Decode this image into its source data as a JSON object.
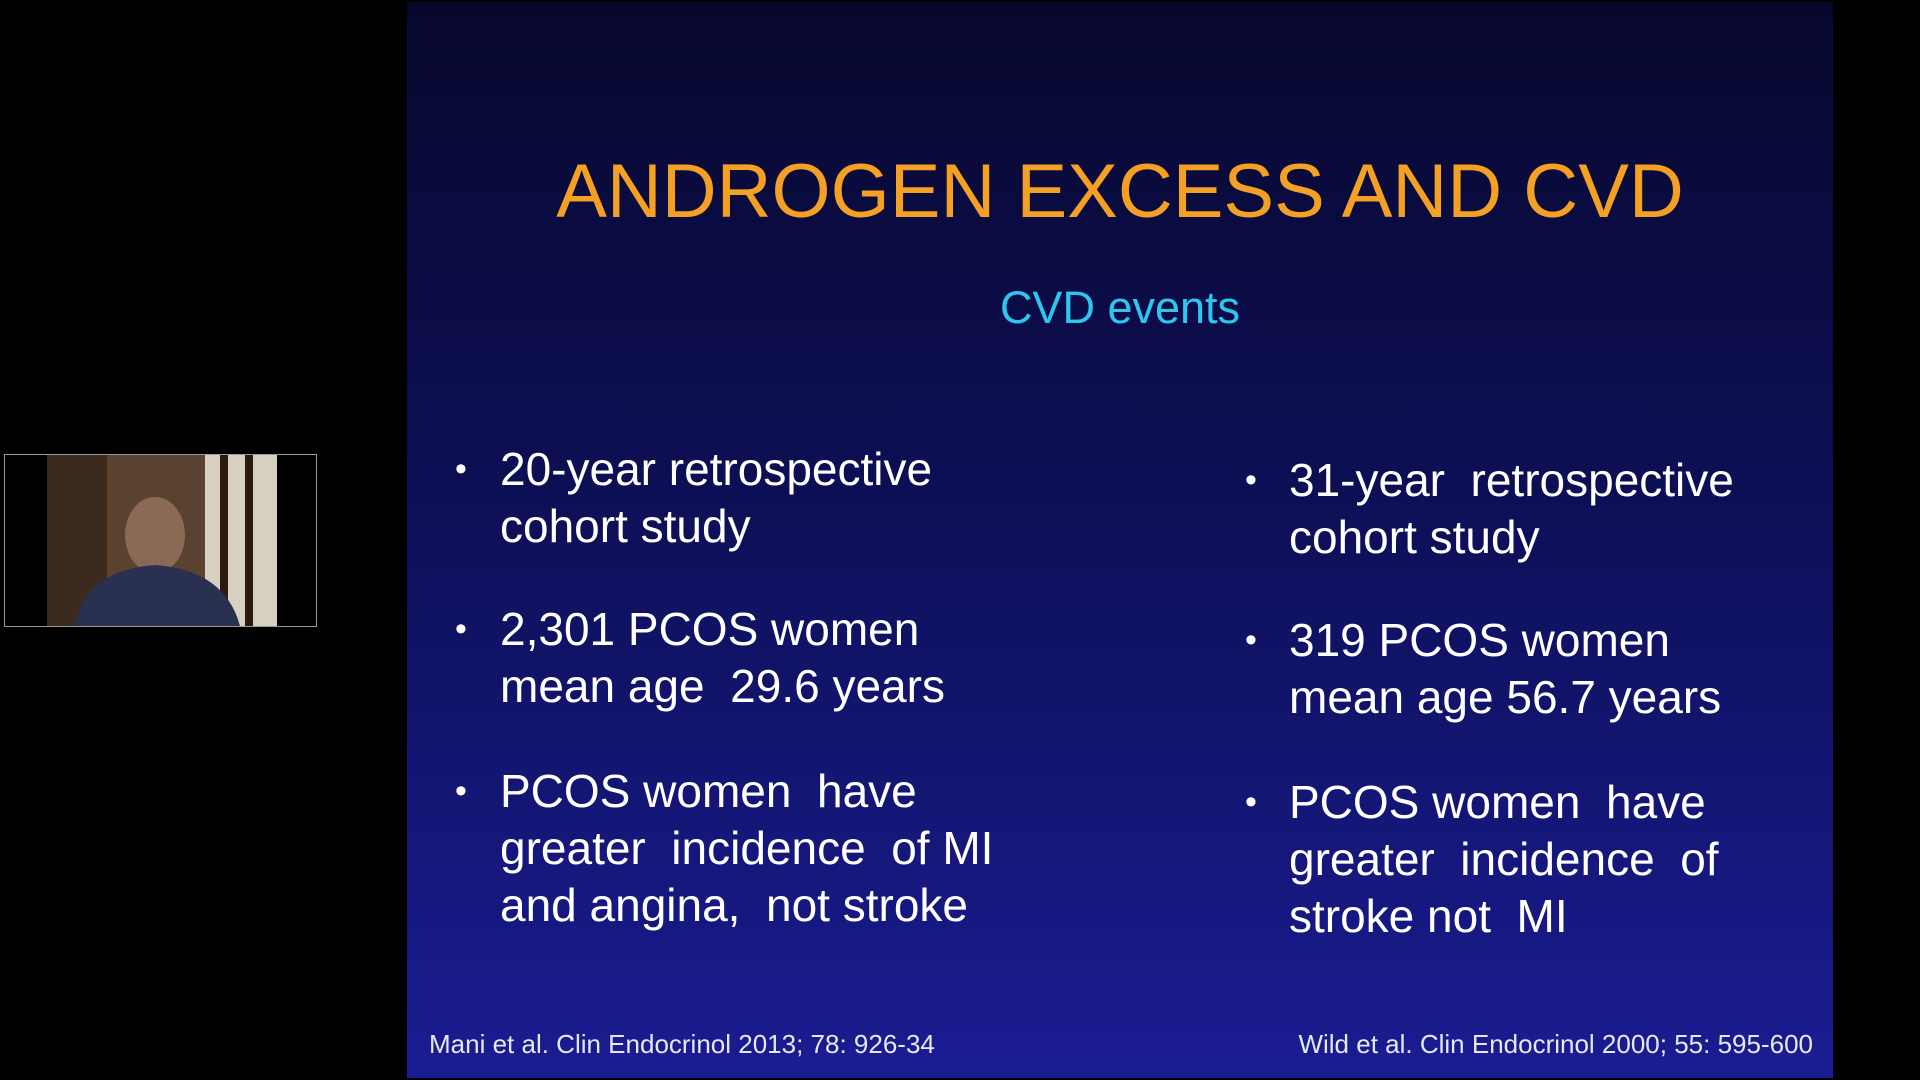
{
  "slide": {
    "title": "ANDROGEN EXCESS AND CVD",
    "subtitle": "CVD events",
    "columns": [
      {
        "bullets": [
          [
            "20-year retrospective",
            "cohort study"
          ],
          [
            "2,301 PCOS women",
            "mean age  29.6 years"
          ],
          [
            "PCOS women  have",
            "greater  incidence  of MI",
            "and angina,  not stroke"
          ]
        ],
        "citation": "Mani et al. Clin Endocrinol 2013; 78: 926-34"
      },
      {
        "bullets": [
          [
            "31-year  retrospective",
            "cohort study"
          ],
          [
            "319 PCOS women",
            "mean age 56.7 years"
          ],
          [
            "PCOS women  have",
            "greater  incidence  of",
            "stroke not  MI"
          ]
        ],
        "citation": "Wild et al. Clin Endocrinol 2000; 55: 595-600"
      }
    ]
  }
}
